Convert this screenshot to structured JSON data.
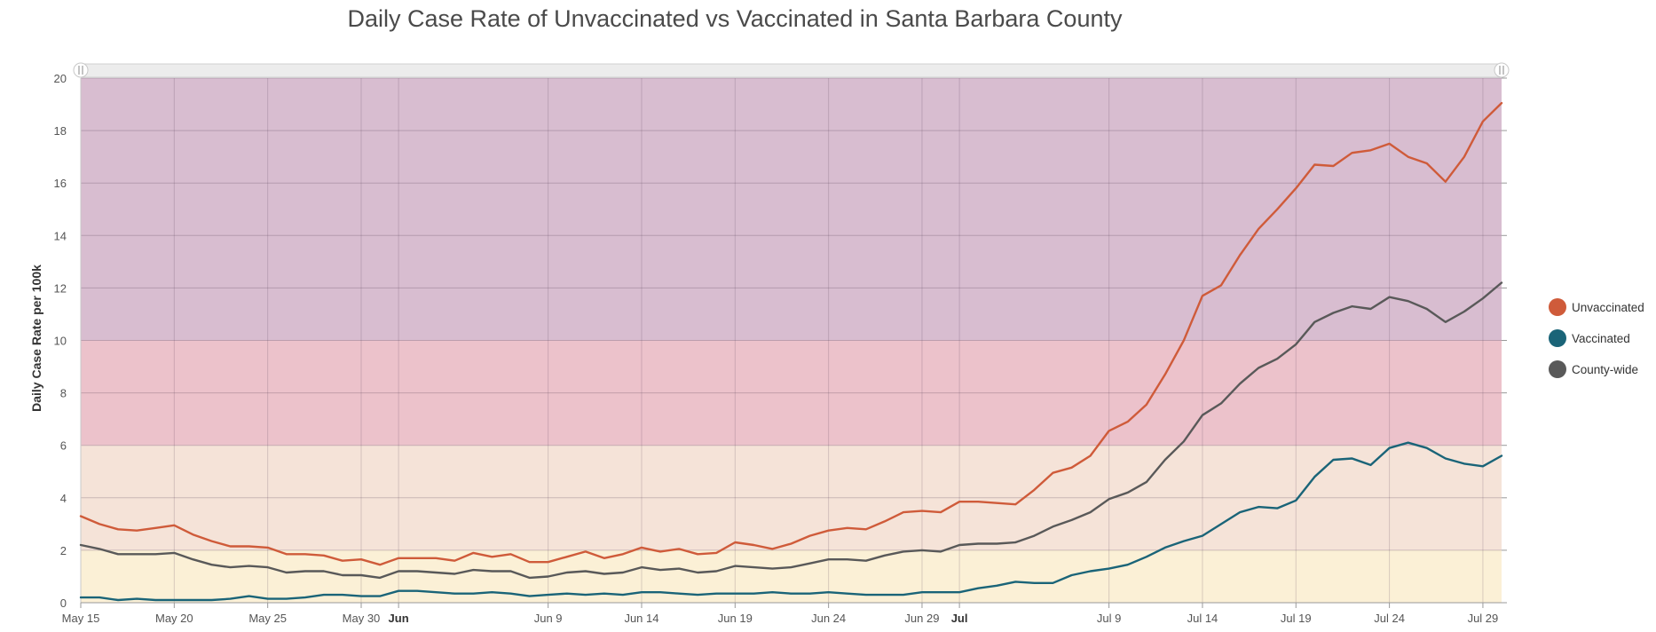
{
  "chart_data": {
    "type": "line",
    "title": "Daily Case Rate of Unvaccinated vs Vaccinated in Santa Barbara County",
    "ylabel": "Daily Case Rate per 100k",
    "xlabel": "",
    "ylim": [
      0,
      20
    ],
    "y_ticks": [
      "0",
      "2",
      "4",
      "6",
      "8",
      "10",
      "12",
      "14",
      "16",
      "18",
      "20"
    ],
    "x_tick_labels": [
      {
        "label": "May 15",
        "bold": false
      },
      {
        "label": "May 20",
        "bold": false
      },
      {
        "label": "May 25",
        "bold": false
      },
      {
        "label": "May 30",
        "bold": false
      },
      {
        "label": "Jun",
        "bold": true
      },
      {
        "label": "Jun 9",
        "bold": false
      },
      {
        "label": "Jun 14",
        "bold": false
      },
      {
        "label": "Jun 19",
        "bold": false
      },
      {
        "label": "Jun 24",
        "bold": false
      },
      {
        "label": "Jun 29",
        "bold": false
      },
      {
        "label": "Jul",
        "bold": true
      },
      {
        "label": "Jul 9",
        "bold": false
      },
      {
        "label": "Jul 14",
        "bold": false
      },
      {
        "label": "Jul 19",
        "bold": false
      },
      {
        "label": "Jul 24",
        "bold": false
      },
      {
        "label": "Jul 29",
        "bold": false
      }
    ],
    "x_range": [
      "2021-05-15",
      "2021-07-30"
    ],
    "bands": [
      {
        "from": 0,
        "to": 2,
        "color": "#fbf0d6"
      },
      {
        "from": 2,
        "to": 6,
        "color": "#f5e3d8"
      },
      {
        "from": 6,
        "to": 10,
        "color": "#ecc2cb"
      },
      {
        "from": 10,
        "to": 20,
        "color": "#d8bdd0"
      }
    ],
    "grid": true,
    "legend_position": "right",
    "dates": [
      "2021-05-15",
      "2021-05-16",
      "2021-05-17",
      "2021-05-18",
      "2021-05-19",
      "2021-05-20",
      "2021-05-21",
      "2021-05-22",
      "2021-05-23",
      "2021-05-24",
      "2021-05-25",
      "2021-05-26",
      "2021-05-27",
      "2021-05-28",
      "2021-05-29",
      "2021-05-30",
      "2021-05-31",
      "2021-06-01",
      "2021-06-02",
      "2021-06-03",
      "2021-06-04",
      "2021-06-05",
      "2021-06-06",
      "2021-06-07",
      "2021-06-08",
      "2021-06-09",
      "2021-06-10",
      "2021-06-11",
      "2021-06-12",
      "2021-06-13",
      "2021-06-14",
      "2021-06-15",
      "2021-06-16",
      "2021-06-17",
      "2021-06-18",
      "2021-06-19",
      "2021-06-20",
      "2021-06-21",
      "2021-06-22",
      "2021-06-23",
      "2021-06-24",
      "2021-06-25",
      "2021-06-26",
      "2021-06-27",
      "2021-06-28",
      "2021-06-29",
      "2021-06-30",
      "2021-07-01",
      "2021-07-02",
      "2021-07-03",
      "2021-07-04",
      "2021-07-05",
      "2021-07-06",
      "2021-07-07",
      "2021-07-08",
      "2021-07-09",
      "2021-07-10",
      "2021-07-11",
      "2021-07-12",
      "2021-07-13",
      "2021-07-14",
      "2021-07-15",
      "2021-07-16",
      "2021-07-17",
      "2021-07-18",
      "2021-07-19",
      "2021-07-20",
      "2021-07-21",
      "2021-07-22",
      "2021-07-23",
      "2021-07-24",
      "2021-07-25",
      "2021-07-26",
      "2021-07-27",
      "2021-07-28",
      "2021-07-29",
      "2021-07-30"
    ],
    "series": [
      {
        "name": "Unvaccinated",
        "color": "#cf5b3a",
        "values": [
          3.3,
          3.0,
          2.8,
          2.75,
          2.85,
          2.95,
          2.6,
          2.35,
          2.15,
          2.15,
          2.1,
          1.85,
          1.85,
          1.8,
          1.6,
          1.65,
          1.45,
          1.7,
          1.7,
          1.7,
          1.6,
          1.9,
          1.75,
          1.85,
          1.55,
          1.55,
          1.75,
          1.95,
          1.7,
          1.85,
          2.1,
          1.95,
          2.05,
          1.85,
          1.9,
          2.3,
          2.2,
          2.05,
          2.25,
          2.55,
          2.75,
          2.85,
          2.8,
          3.1,
          3.45,
          3.5,
          3.45,
          3.85,
          3.85,
          3.8,
          3.75,
          4.3,
          4.95,
          5.15,
          5.6,
          6.55,
          6.9,
          7.55,
          8.7,
          10.0,
          11.7,
          12.1,
          13.25,
          14.25,
          15.0,
          15.8,
          16.7,
          16.65,
          17.15,
          17.25,
          17.5,
          17.0,
          16.75,
          16.05,
          17.0,
          18.35,
          19.05
        ]
      },
      {
        "name": "Vaccinated",
        "color": "#1a6478",
        "values": [
          0.2,
          0.2,
          0.1,
          0.15,
          0.1,
          0.1,
          0.1,
          0.1,
          0.15,
          0.25,
          0.15,
          0.15,
          0.2,
          0.3,
          0.3,
          0.25,
          0.25,
          0.45,
          0.45,
          0.4,
          0.35,
          0.35,
          0.4,
          0.35,
          0.25,
          0.3,
          0.35,
          0.3,
          0.35,
          0.3,
          0.4,
          0.4,
          0.35,
          0.3,
          0.35,
          0.35,
          0.35,
          0.4,
          0.35,
          0.35,
          0.4,
          0.35,
          0.3,
          0.3,
          0.3,
          0.4,
          0.4,
          0.4,
          0.55,
          0.65,
          0.8,
          0.75,
          0.75,
          1.05,
          1.2,
          1.3,
          1.45,
          1.75,
          2.1,
          2.35,
          2.55,
          3.0,
          3.45,
          3.65,
          3.6,
          3.9,
          4.8,
          5.45,
          5.5,
          5.25,
          5.9,
          6.1,
          5.9,
          5.5,
          5.3,
          5.2,
          5.6
        ]
      },
      {
        "name": "County-wide",
        "color": "#595959",
        "values": [
          2.2,
          2.05,
          1.85,
          1.85,
          1.85,
          1.9,
          1.65,
          1.45,
          1.35,
          1.4,
          1.35,
          1.15,
          1.2,
          1.2,
          1.05,
          1.05,
          0.95,
          1.2,
          1.2,
          1.15,
          1.1,
          1.25,
          1.2,
          1.2,
          0.95,
          1.0,
          1.15,
          1.2,
          1.1,
          1.15,
          1.35,
          1.25,
          1.3,
          1.15,
          1.2,
          1.4,
          1.35,
          1.3,
          1.35,
          1.5,
          1.65,
          1.65,
          1.6,
          1.8,
          1.95,
          2.0,
          1.95,
          2.2,
          2.25,
          2.25,
          2.3,
          2.55,
          2.9,
          3.15,
          3.45,
          3.95,
          4.2,
          4.6,
          5.45,
          6.15,
          7.15,
          7.6,
          8.35,
          8.95,
          9.3,
          9.85,
          10.7,
          11.05,
          11.3,
          11.2,
          11.65,
          11.5,
          11.2,
          10.7,
          11.1,
          11.6,
          12.2
        ]
      }
    ]
  }
}
